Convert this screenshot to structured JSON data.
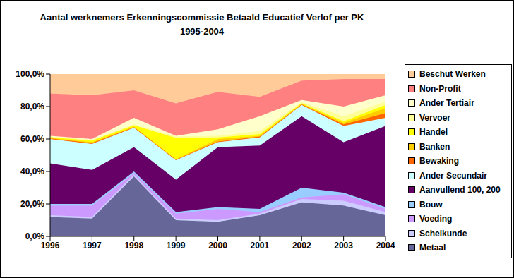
{
  "chart_data": {
    "type": "area",
    "title": "Aantal werknemers Erkenningscommissie Betaald Educatief Verlof per PK",
    "subtitle": "1995-2004",
    "stacked": true,
    "grid": false,
    "legend": "right",
    "categories": [
      "1996",
      "1997",
      "1998",
      "1999",
      "2000",
      "2001",
      "2002",
      "2003",
      "2004"
    ],
    "ylim": [
      0,
      100
    ],
    "yticks": [
      {
        "value": 0,
        "label": "0,0%"
      },
      {
        "value": 20,
        "label": "20,0%"
      },
      {
        "value": 40,
        "label": "40,0%"
      },
      {
        "value": 60,
        "label": "60,0%"
      },
      {
        "value": 80,
        "label": "80,0%"
      },
      {
        "value": 100,
        "label": "100,0%"
      }
    ],
    "series": [
      {
        "name": "Metaal",
        "color": "#666699",
        "values": [
          12,
          11,
          37,
          10,
          9,
          13,
          21,
          19,
          13
        ]
      },
      {
        "name": "Scheikunde",
        "color": "#CCCCFF",
        "values": [
          1,
          1,
          1,
          1,
          1,
          1,
          2,
          3,
          2
        ]
      },
      {
        "name": "Voeding",
        "color": "#CC99FF",
        "values": [
          6,
          7,
          1,
          3,
          7,
          1,
          1,
          4,
          2
        ]
      },
      {
        "name": "Bouw",
        "color": "#99CCFF",
        "values": [
          1,
          1,
          1,
          1,
          1,
          2,
          6,
          1,
          1
        ]
      },
      {
        "name": "Aanvullend 100, 200",
        "color": "#660066",
        "values": [
          25,
          21,
          15,
          20,
          37,
          39,
          44,
          31,
          50
        ]
      },
      {
        "name": "Ander Secundair",
        "color": "#CCFFFF",
        "values": [
          15,
          16,
          12,
          12,
          3,
          5,
          7,
          10,
          5
        ]
      },
      {
        "name": "Bewaking",
        "color": "#FF6600",
        "values": [
          0.3,
          0.5,
          0.3,
          0.3,
          0.5,
          0.5,
          0.3,
          1,
          3
        ]
      },
      {
        "name": "Banken",
        "color": "#FFCC00",
        "values": [
          0.3,
          0.5,
          0.3,
          0.3,
          1.5,
          0.5,
          0.3,
          1,
          3
        ]
      },
      {
        "name": "Handel",
        "color": "#FFFF00",
        "values": [
          0.5,
          1,
          0.9,
          13,
          1,
          1,
          0.5,
          1,
          2
        ]
      },
      {
        "name": "Vervoer",
        "color": "#FFFF99",
        "values": [
          0.5,
          0.5,
          0.5,
          1,
          1,
          2,
          0.5,
          3,
          2
        ]
      },
      {
        "name": "Ander Tertiair",
        "color": "#FFFFCC",
        "values": [
          0.4,
          0.5,
          4,
          0.4,
          4,
          9,
          1.4,
          6,
          4
        ]
      },
      {
        "name": "Non-Profit",
        "color": "#FF8080",
        "values": [
          26,
          27,
          17,
          20,
          23,
          12,
          12,
          17,
          10
        ]
      },
      {
        "name": "Beschut Werken",
        "color": "#FFCC99",
        "values": [
          12,
          13,
          10,
          18,
          11,
          14,
          4,
          3,
          3
        ]
      }
    ]
  }
}
